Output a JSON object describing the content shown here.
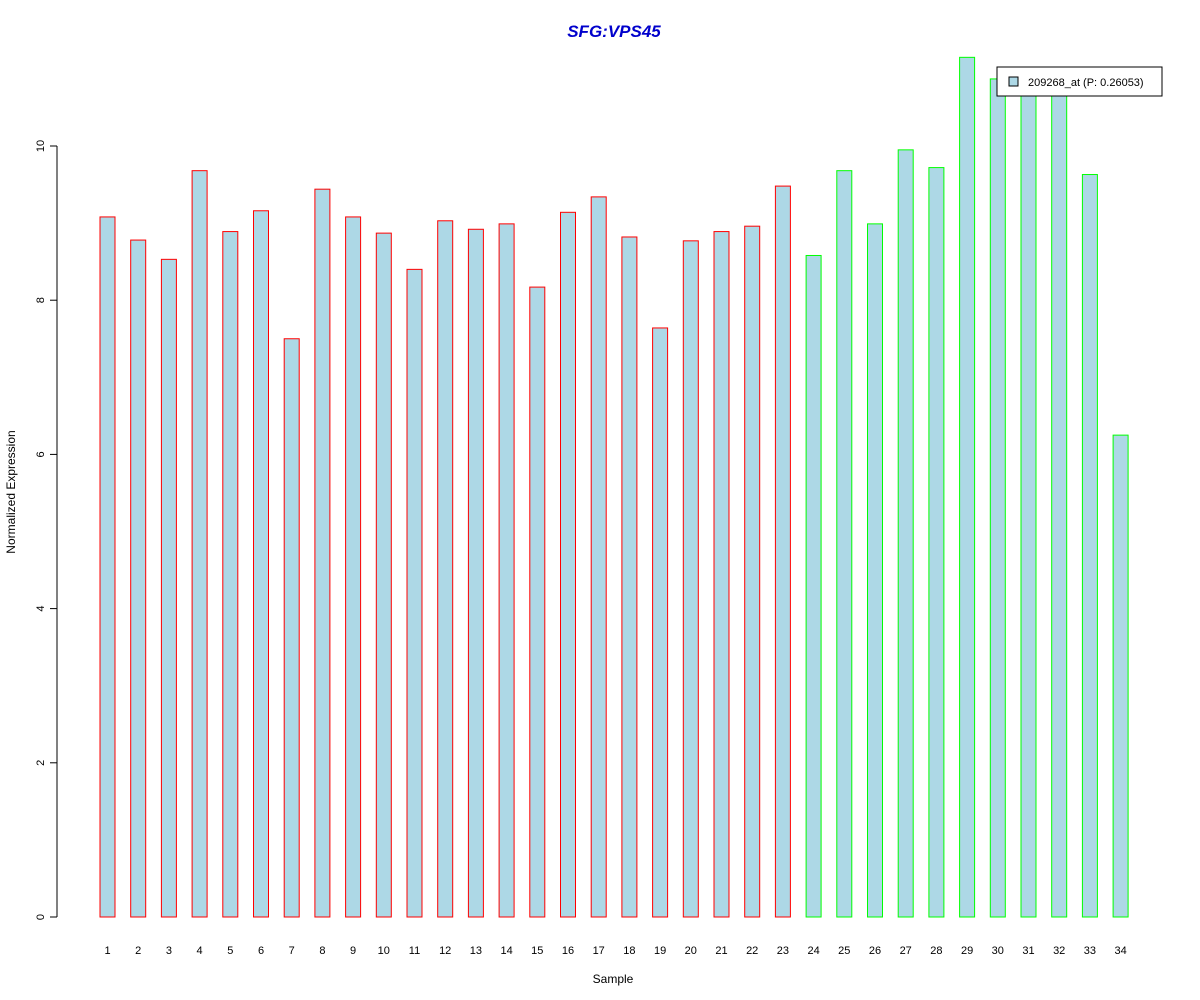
{
  "chart_data": {
    "type": "bar",
    "title": "SFG:VPS45",
    "xlabel": "Sample",
    "ylabel": "Normalized Expression",
    "ylim": [
      0,
      11.2
    ],
    "yticks": [
      0,
      2,
      4,
      6,
      8,
      10
    ],
    "grid": false,
    "legend_position": "top-right",
    "categories": [
      "1",
      "2",
      "3",
      "4",
      "5",
      "6",
      "7",
      "8",
      "9",
      "10",
      "11",
      "12",
      "13",
      "14",
      "15",
      "16",
      "17",
      "18",
      "19",
      "20",
      "21",
      "22",
      "23",
      "24",
      "25",
      "26",
      "27",
      "28",
      "29",
      "30",
      "31",
      "32",
      "33",
      "34"
    ],
    "series": [
      {
        "name": "209268_at (P: 0.26053)",
        "fill": "#add8e6",
        "values": [
          9.08,
          8.78,
          8.53,
          9.68,
          8.89,
          9.16,
          7.5,
          9.44,
          9.08,
          8.87,
          8.4,
          9.03,
          8.92,
          8.99,
          8.17,
          9.14,
          9.34,
          8.82,
          7.64,
          8.77,
          8.89,
          8.96,
          9.48,
          8.58,
          9.68,
          8.99,
          9.95,
          9.72,
          11.15,
          10.87,
          10.87,
          10.87,
          9.63,
          6.25
        ]
      }
    ],
    "groups": [
      {
        "samples_from": 1,
        "samples_to": 23,
        "border_color": "#ff0000"
      },
      {
        "samples_from": 24,
        "samples_to": 34,
        "border_color": "#00ff00"
      }
    ]
  }
}
